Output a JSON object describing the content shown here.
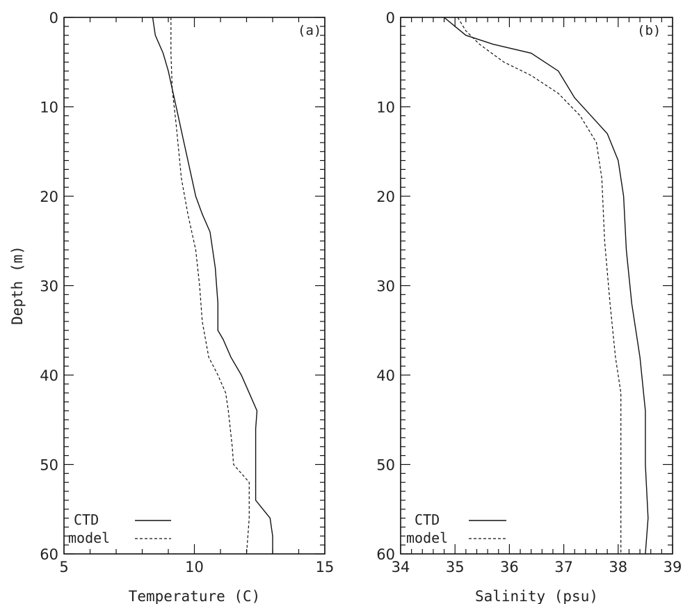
{
  "shared": {
    "ylabel": "Depth (m)",
    "y_ticks": [
      "0",
      "10",
      "20",
      "30",
      "40",
      "50",
      "60"
    ],
    "legend": [
      "CTD",
      "model"
    ]
  },
  "chart_data": [
    {
      "type": "line",
      "panel_label": "(a)",
      "xlabel": "Temperature (C)",
      "ylabel": "Depth (m)",
      "xlim": [
        5,
        15
      ],
      "ylim": [
        0,
        60
      ],
      "y_inverted": true,
      "x_ticks": [
        "5",
        "10",
        "15"
      ],
      "legend_position": "bottom-left",
      "series": [
        {
          "name": "CTD",
          "style": "solid",
          "points": [
            [
              8.4,
              0
            ],
            [
              8.5,
              2
            ],
            [
              8.8,
              4
            ],
            [
              9.0,
              6
            ],
            [
              9.3,
              10
            ],
            [
              9.6,
              14
            ],
            [
              9.9,
              18
            ],
            [
              10.05,
              20
            ],
            [
              10.3,
              22
            ],
            [
              10.6,
              24
            ],
            [
              10.8,
              28
            ],
            [
              10.9,
              32
            ],
            [
              10.9,
              35
            ],
            [
              11.1,
              36
            ],
            [
              11.4,
              38
            ],
            [
              11.8,
              40
            ],
            [
              12.1,
              42
            ],
            [
              12.4,
              44
            ],
            [
              12.35,
              46
            ],
            [
              12.35,
              50
            ],
            [
              12.35,
              54
            ],
            [
              12.9,
              56
            ],
            [
              13.0,
              58
            ],
            [
              13.0,
              60
            ]
          ]
        },
        {
          "name": "model",
          "style": "dashed",
          "points": [
            [
              9.1,
              0
            ],
            [
              9.1,
              4
            ],
            [
              9.15,
              8
            ],
            [
              9.3,
              12
            ],
            [
              9.5,
              18
            ],
            [
              9.75,
              22
            ],
            [
              10.05,
              26
            ],
            [
              10.2,
              30
            ],
            [
              10.3,
              34
            ],
            [
              10.55,
              38
            ],
            [
              10.9,
              40
            ],
            [
              11.2,
              42
            ],
            [
              11.3,
              44
            ],
            [
              11.45,
              48
            ],
            [
              11.5,
              50
            ],
            [
              12.1,
              52
            ],
            [
              12.1,
              56
            ],
            [
              12.0,
              60
            ]
          ]
        }
      ]
    },
    {
      "type": "line",
      "panel_label": "(b)",
      "xlabel": "Salinity (psu)",
      "ylabel": "",
      "xlim": [
        34,
        39
      ],
      "ylim": [
        0,
        60
      ],
      "y_inverted": true,
      "x_ticks": [
        "34",
        "35",
        "36",
        "37",
        "38",
        "39"
      ],
      "legend_position": "bottom-left",
      "series": [
        {
          "name": "CTD",
          "style": "solid",
          "points": [
            [
              34.8,
              0
            ],
            [
              35.0,
              1
            ],
            [
              35.2,
              2
            ],
            [
              35.7,
              3
            ],
            [
              36.4,
              4
            ],
            [
              36.9,
              6
            ],
            [
              37.2,
              9
            ],
            [
              37.5,
              11
            ],
            [
              37.8,
              13
            ],
            [
              38.0,
              16
            ],
            [
              38.1,
              20
            ],
            [
              38.15,
              26
            ],
            [
              38.25,
              32
            ],
            [
              38.4,
              38
            ],
            [
              38.5,
              44
            ],
            [
              38.5,
              50
            ],
            [
              38.55,
              56
            ],
            [
              38.5,
              60
            ]
          ]
        },
        {
          "name": "model",
          "style": "dashed",
          "points": [
            [
              35.05,
              0
            ],
            [
              35.2,
              1.5
            ],
            [
              35.45,
              3
            ],
            [
              35.9,
              5
            ],
            [
              36.4,
              6.5
            ],
            [
              36.9,
              8.5
            ],
            [
              37.3,
              11
            ],
            [
              37.6,
              14
            ],
            [
              37.7,
              18
            ],
            [
              37.75,
              25
            ],
            [
              37.85,
              32
            ],
            [
              37.95,
              38
            ],
            [
              38.05,
              42
            ],
            [
              38.05,
              50
            ],
            [
              38.05,
              60
            ]
          ]
        }
      ]
    }
  ]
}
